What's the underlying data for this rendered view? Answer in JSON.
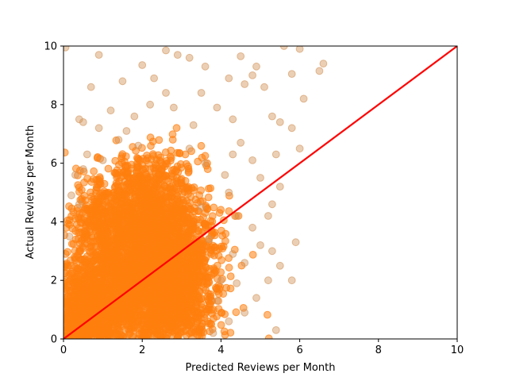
{
  "chart_data": {
    "type": "scatter",
    "title": "",
    "xlabel": "Predicted Reviews per Month",
    "ylabel": "Actual Reviews per Month",
    "xlim": [
      0,
      10
    ],
    "ylim": [
      0,
      10
    ],
    "xticks": [
      "0",
      "2",
      "4",
      "6",
      "8",
      "10"
    ],
    "yticks": [
      "0",
      "2",
      "4",
      "6",
      "8",
      "10"
    ],
    "grid": false,
    "legend": "none",
    "series": [
      {
        "kind": "points",
        "color": "#d2955a",
        "core_color": "#ff7f0e",
        "opacity": 0.45,
        "points": [
          [
            0.05,
            9.95
          ],
          [
            0.9,
            9.7
          ],
          [
            2.6,
            9.85
          ],
          [
            2.9,
            9.7
          ],
          [
            3.2,
            9.6
          ],
          [
            4.5,
            9.65
          ],
          [
            4.9,
            9.3
          ],
          [
            5.6,
            10.0
          ],
          [
            6.0,
            9.9
          ],
          [
            6.6,
            9.4
          ],
          [
            6.5,
            9.15
          ],
          [
            5.8,
            9.05
          ],
          [
            0.7,
            8.6
          ],
          [
            0.5,
            7.4
          ],
          [
            1.2,
            7.8
          ],
          [
            1.5,
            8.8
          ],
          [
            2.0,
            9.35
          ],
          [
            2.3,
            8.9
          ],
          [
            3.5,
            8.4
          ],
          [
            3.6,
            9.3
          ],
          [
            4.2,
            8.9
          ],
          [
            4.6,
            8.7
          ],
          [
            4.8,
            9.0
          ],
          [
            5.1,
            8.6
          ],
          [
            6.1,
            8.2
          ],
          [
            5.5,
            7.4
          ],
          [
            5.3,
            7.6
          ],
          [
            5.8,
            7.2
          ],
          [
            6.0,
            6.5
          ],
          [
            5.4,
            6.3
          ],
          [
            0.4,
            7.5
          ],
          [
            0.9,
            7.2
          ],
          [
            1.4,
            6.8
          ],
          [
            1.0,
            6.1
          ],
          [
            0.6,
            6.3
          ],
          [
            0.5,
            5.8
          ],
          [
            0.3,
            5.6
          ],
          [
            0.2,
            4.9
          ],
          [
            0.4,
            4.6
          ],
          [
            0.15,
            3.5
          ],
          [
            3.9,
            7.9
          ],
          [
            4.3,
            7.5
          ],
          [
            4.5,
            6.7
          ],
          [
            4.8,
            6.1
          ],
          [
            5.0,
            5.5
          ],
          [
            5.5,
            5.2
          ],
          [
            5.3,
            4.6
          ],
          [
            5.2,
            4.2
          ],
          [
            5.0,
            3.2
          ],
          [
            5.3,
            3.0
          ],
          [
            5.5,
            2.5
          ],
          [
            5.2,
            2.0
          ],
          [
            5.8,
            2.0
          ],
          [
            5.9,
            3.3
          ],
          [
            5.4,
            0.3
          ],
          [
            4.6,
            0.9
          ],
          [
            4.9,
            1.4
          ],
          [
            4.4,
            1.9
          ],
          [
            4.6,
            2.6
          ],
          [
            4.8,
            3.8
          ],
          [
            4.4,
            4.2
          ],
          [
            4.2,
            5.0
          ],
          [
            4.1,
            5.6
          ],
          [
            4.3,
            6.3
          ],
          [
            3.8,
            0.2
          ],
          [
            4.2,
            0.6
          ],
          [
            3.9,
            1.3
          ],
          [
            4.0,
            2.0
          ],
          [
            4.3,
            2.9
          ],
          [
            3.7,
            3.4
          ],
          [
            3.5,
            4.5
          ],
          [
            3.6,
            6.0
          ],
          [
            3.2,
            6.5
          ],
          [
            3.3,
            7.3
          ],
          [
            2.8,
            7.9
          ],
          [
            2.6,
            8.4
          ],
          [
            2.2,
            8.0
          ],
          [
            1.8,
            7.6
          ],
          [
            1.6,
            7.1
          ],
          [
            1.9,
            6.6
          ]
        ]
      },
      {
        "kind": "clusters",
        "color": "#ff7f0e",
        "opacity": 0.55,
        "clusters": [
          {
            "cx": 1.7,
            "cy": 2.2,
            "sx": 0.85,
            "sy": 1.35,
            "n": 1600
          },
          {
            "cx": 2.4,
            "cy": 3.2,
            "sx": 0.55,
            "sy": 1.25,
            "n": 900
          },
          {
            "cx": 0.6,
            "cy": 0.7,
            "sx": 0.45,
            "sy": 0.7,
            "n": 900
          },
          {
            "cx": 2.6,
            "cy": 1.2,
            "sx": 0.6,
            "sy": 0.85,
            "n": 700
          },
          {
            "cx": 3.2,
            "cy": 2.8,
            "sx": 0.45,
            "sy": 1.2,
            "n": 350
          },
          {
            "cx": 2.1,
            "cy": 5.0,
            "sx": 0.5,
            "sy": 0.8,
            "n": 350
          },
          {
            "cx": 1.0,
            "cy": 3.8,
            "sx": 0.4,
            "sy": 0.9,
            "n": 300
          }
        ]
      },
      {
        "kind": "line",
        "color": "#ff0000",
        "points": [
          [
            0,
            0
          ],
          [
            10,
            10
          ]
        ]
      }
    ]
  }
}
